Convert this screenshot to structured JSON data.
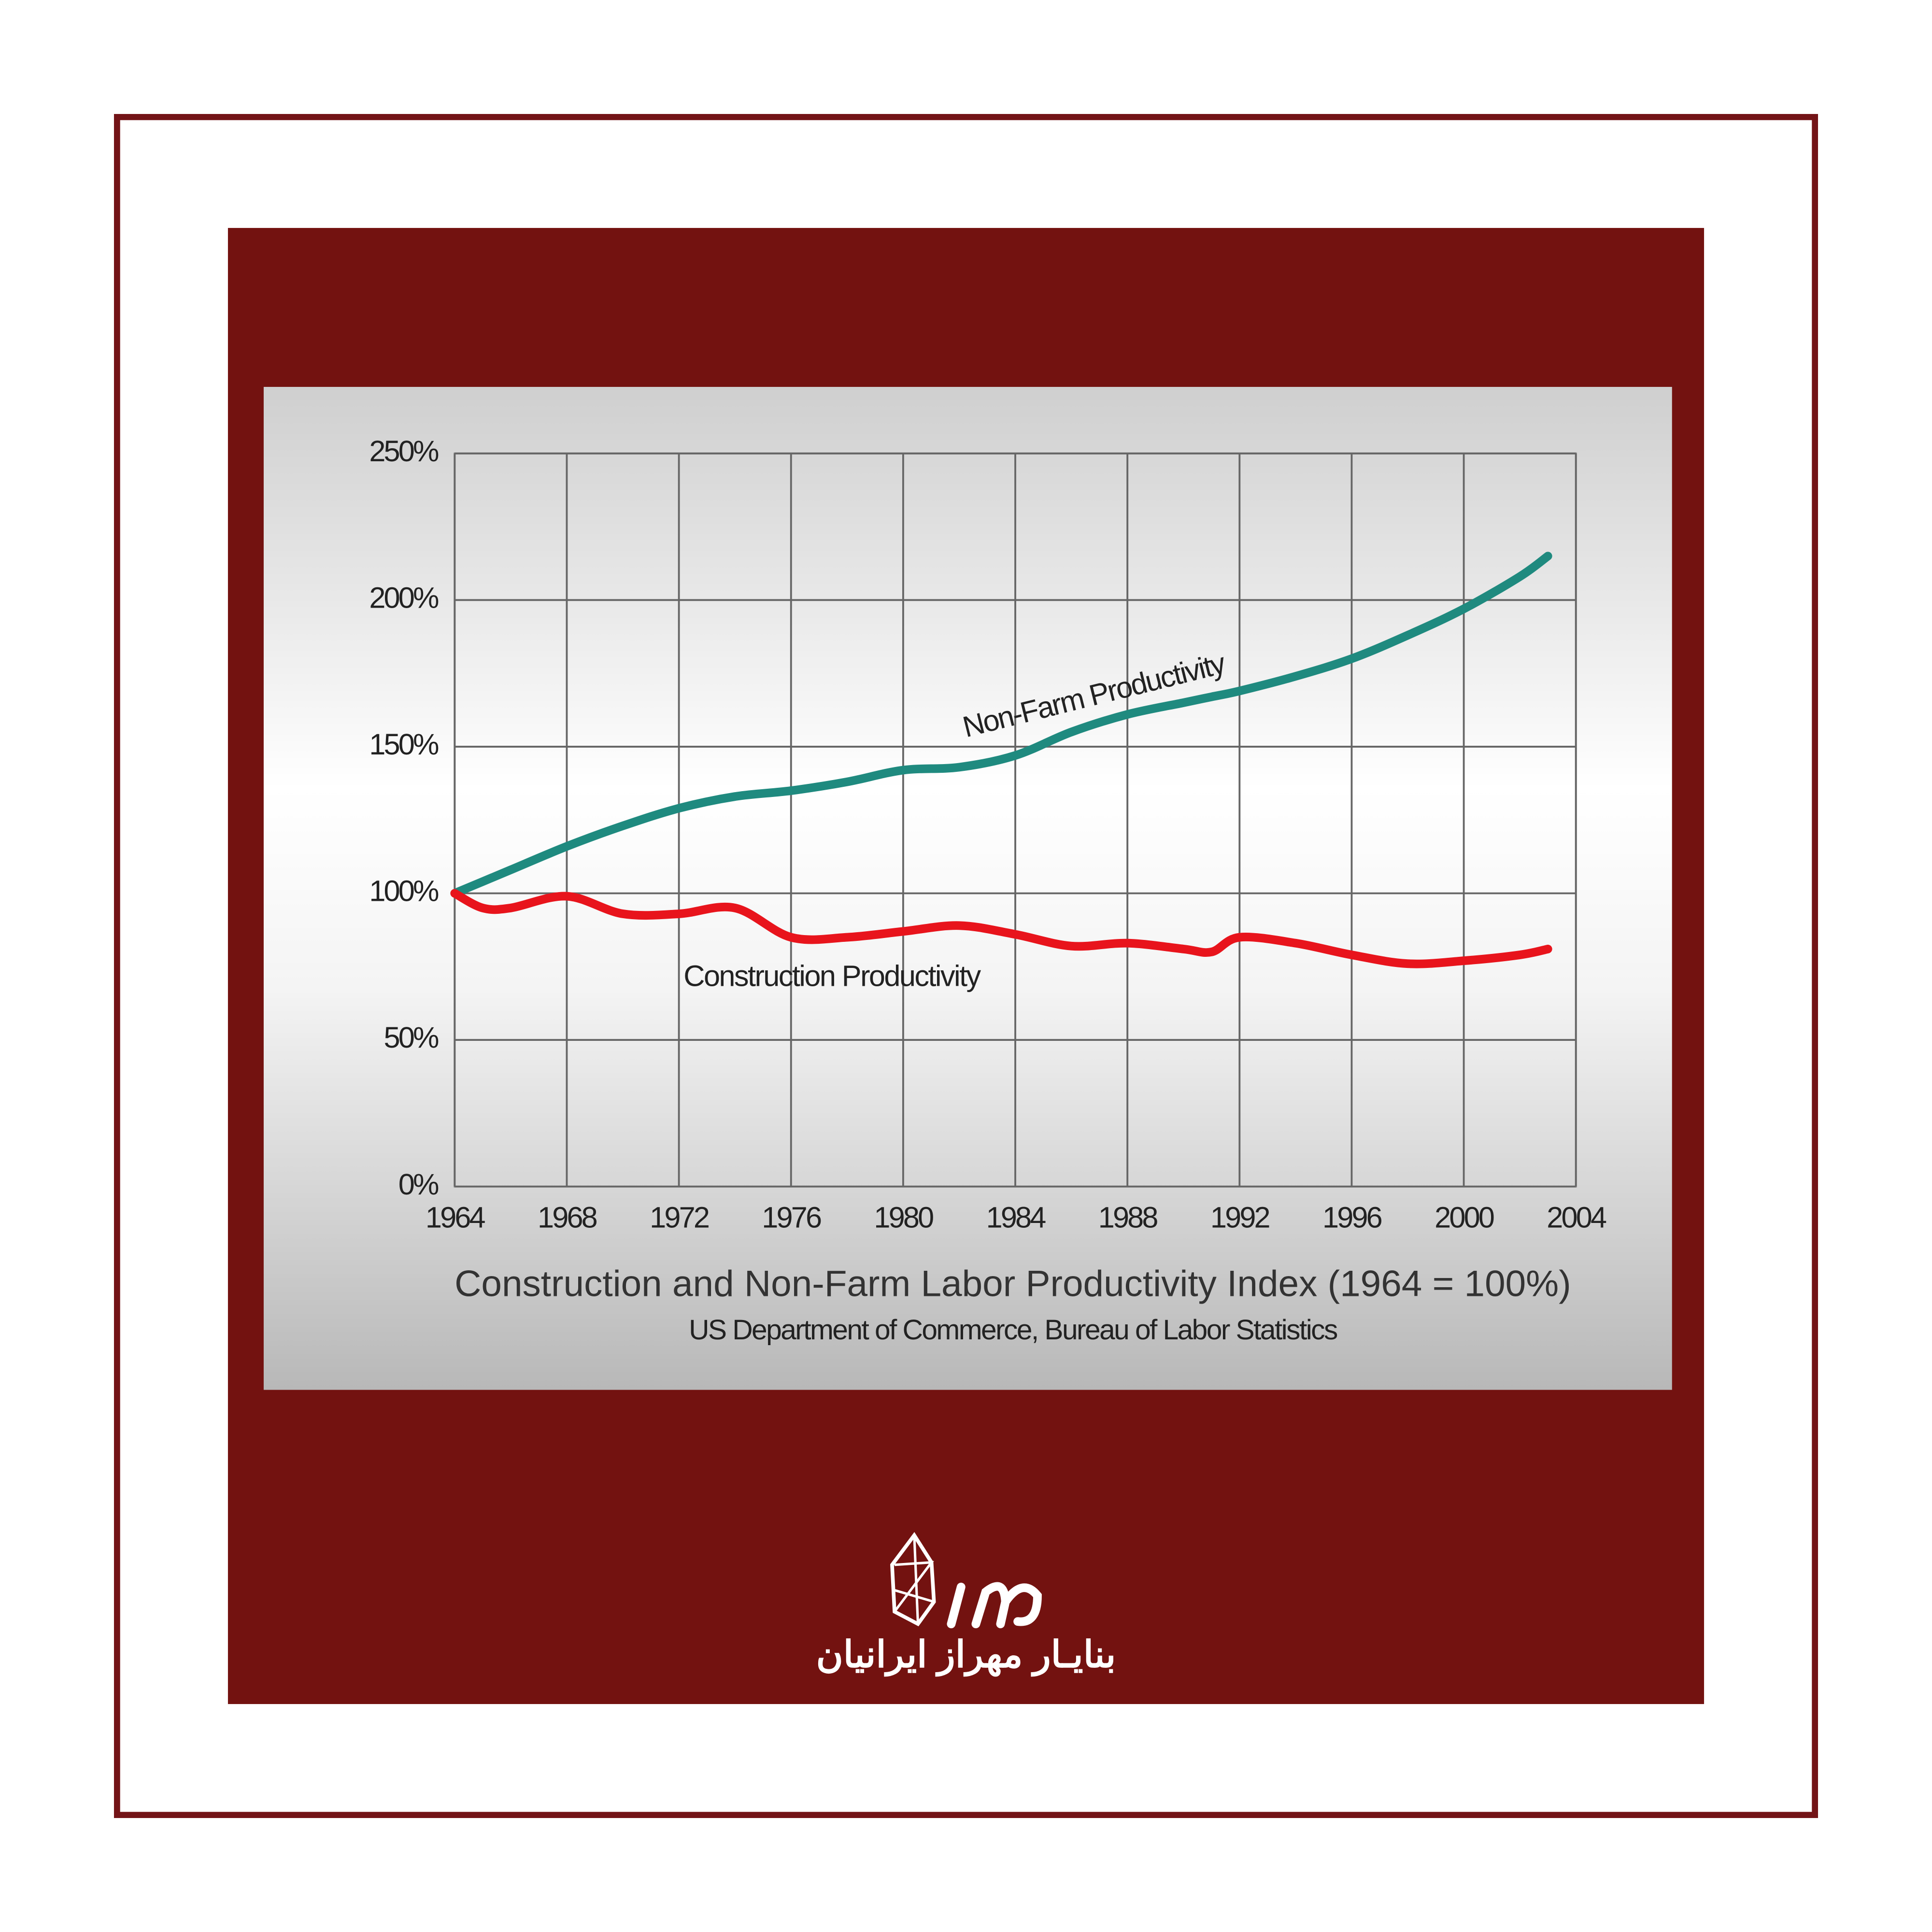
{
  "chart_data": {
    "type": "line",
    "title": "Construction and Non-Farm Labor Productivity Index  (1964 = 100%)",
    "subtitle": "US Department of Commerce, Bureau of Labor Statistics",
    "x": [
      1964,
      1965,
      1966,
      1968,
      1970,
      1972,
      1974,
      1976,
      1978,
      1980,
      1982,
      1984,
      1986,
      1988,
      1990,
      1991,
      1992,
      1994,
      1996,
      1998,
      2000,
      2002,
      2003
    ],
    "series": [
      {
        "name": "Non-Farm Productivity",
        "color": "#1f8a7f",
        "values": [
          100,
          104,
          108,
          116,
          123,
          129,
          133,
          135,
          138,
          142,
          143,
          147,
          155,
          161,
          165,
          167,
          169,
          174,
          180,
          188,
          197,
          208,
          215
        ]
      },
      {
        "name": "Construction Productivity",
        "color": "#e8141c",
        "values": [
          100,
          95,
          95,
          99,
          93,
          93,
          95,
          85,
          85,
          87,
          89,
          86,
          82,
          83,
          81,
          80,
          85,
          83,
          79,
          76,
          77,
          79,
          81
        ]
      }
    ],
    "xlim": [
      1964,
      2004
    ],
    "xticks": [
      1964,
      1968,
      1972,
      1976,
      1980,
      1984,
      1988,
      1992,
      1996,
      2000,
      2004
    ],
    "ylim": [
      0,
      250
    ],
    "yticks": [
      {
        "value": 0,
        "label": "0%"
      },
      {
        "value": 50,
        "label": "50%"
      },
      {
        "value": 100,
        "label": "100%"
      },
      {
        "value": 150,
        "label": "150%"
      },
      {
        "value": 200,
        "label": "200%"
      },
      {
        "value": 250,
        "label": "250%"
      }
    ],
    "grid": true
  },
  "brand": {
    "name": "بنایـار مهراز ایرانیان"
  }
}
